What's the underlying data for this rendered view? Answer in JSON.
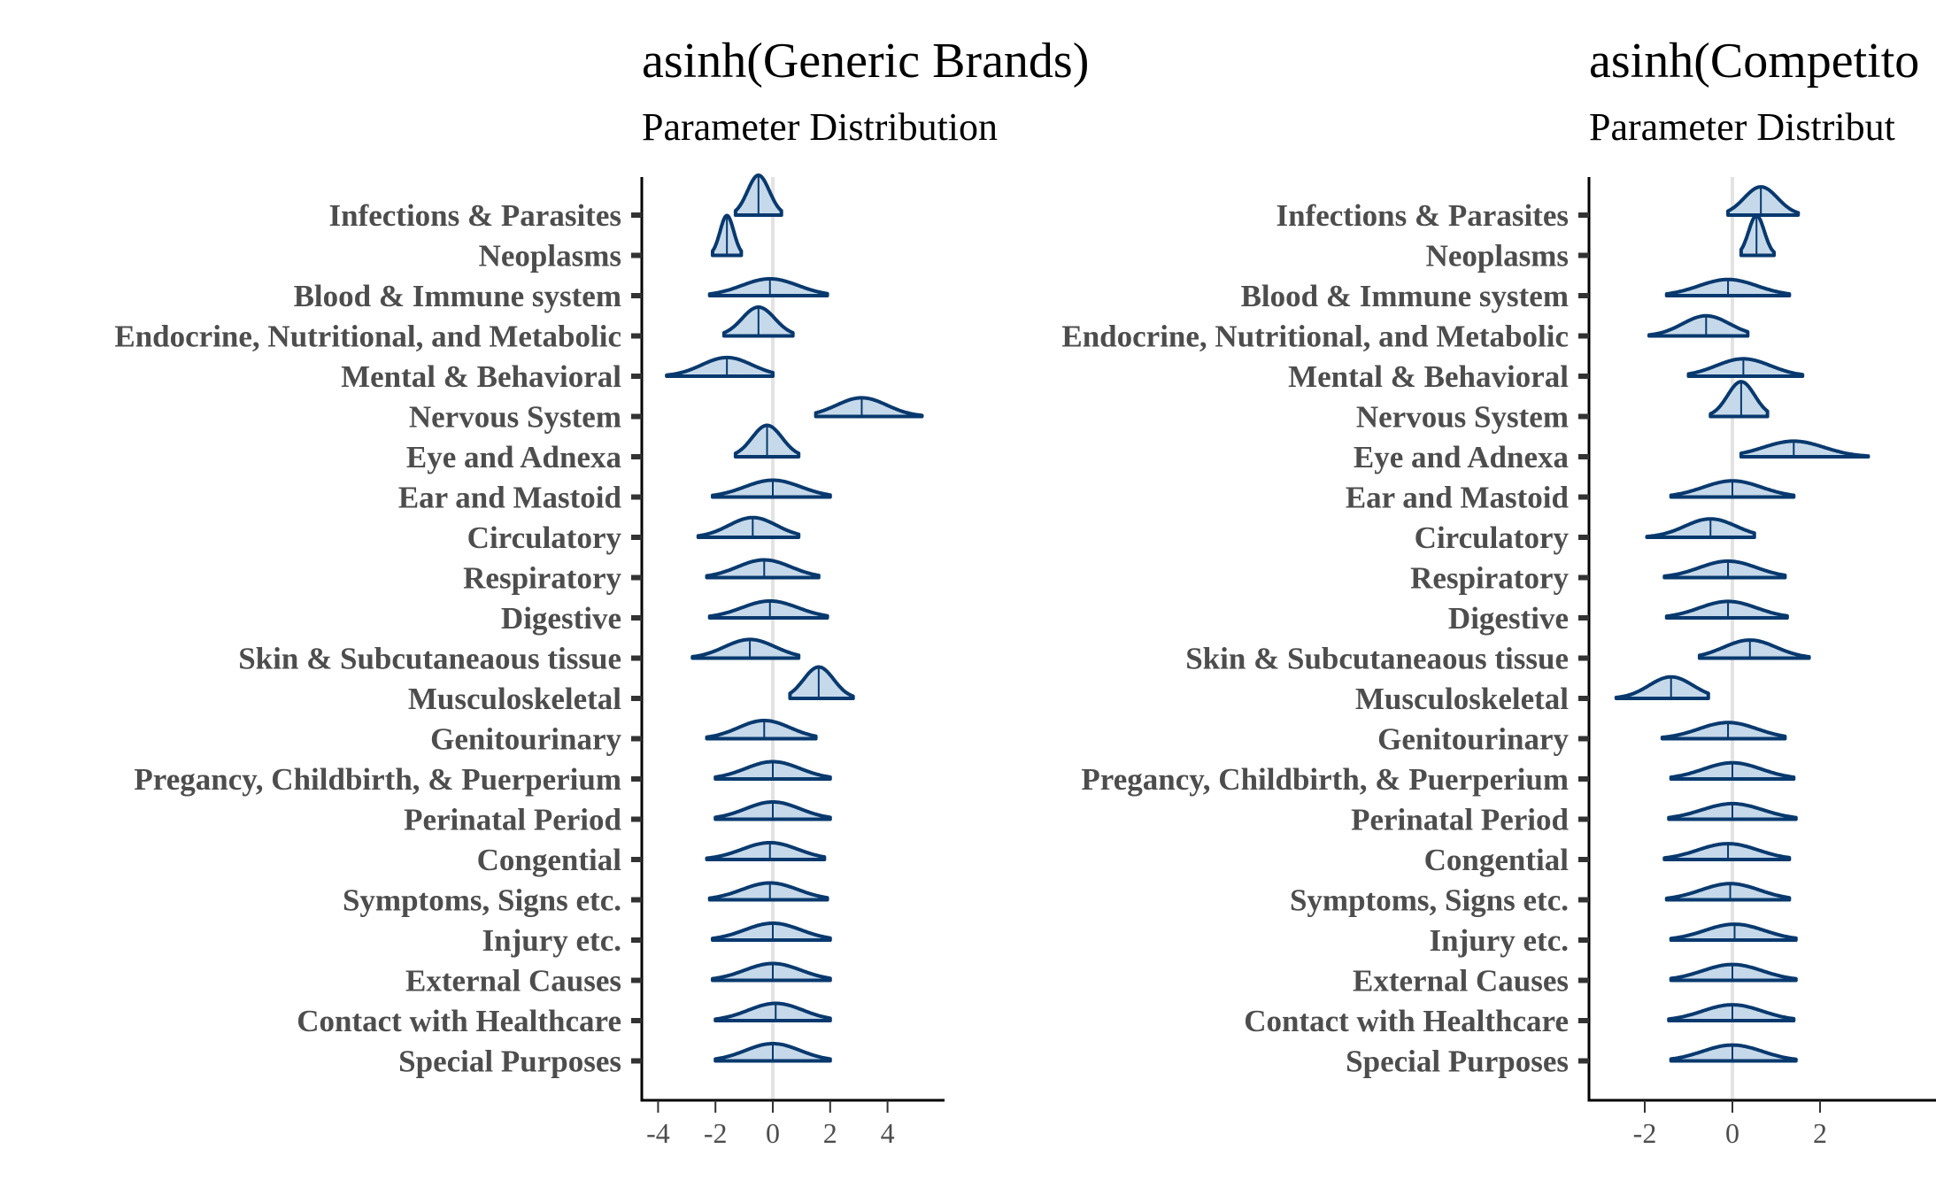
{
  "colors": {
    "fill": "#c6d9ea",
    "stroke": "#08396e",
    "zero_line": "#e3e3e3",
    "axis": "#000000",
    "tick": "#333333",
    "label": "#4d4d4d"
  },
  "chart_data": [
    {
      "type": "density",
      "title": "asinh(Generic Brands)",
      "subtitle": "Parameter Distribution",
      "xlim": [
        -4.6,
        6.0
      ],
      "xticks": [
        -4,
        -2,
        0,
        2,
        4
      ],
      "xtick_labels": [
        "-4",
        "-2",
        "0",
        "2",
        "4"
      ],
      "categories": [
        "Infections & Parasites",
        "Neoplasms",
        "Blood & Immune system",
        "Endocrine, Nutritional, and Metabolic",
        "Mental & Behavioral",
        "Nervous System",
        "Eye and Adnexa",
        "Ear and Mastoid",
        "Circulatory",
        "Respiratory",
        "Digestive",
        "Skin & Subcutaneaous tissue",
        "Musculoskeletal",
        "Genitourinary",
        "Pregancy, Childbirth, & Puerperium",
        "Perinatal Period",
        "Congential",
        "Symptoms, Signs etc.",
        "Injury etc.",
        "External Causes",
        "Contact with Healthcare",
        "Special Purposes"
      ],
      "distributions": [
        {
          "lo": -1.3,
          "center": -0.5,
          "hi": 0.3
        },
        {
          "lo": -2.1,
          "center": -1.6,
          "hi": -1.1
        },
        {
          "lo": -2.2,
          "center": -0.1,
          "hi": 1.9
        },
        {
          "lo": -1.7,
          "center": -0.5,
          "hi": 0.7
        },
        {
          "lo": -3.7,
          "center": -1.6,
          "hi": 0.0
        },
        {
          "lo": 1.5,
          "center": 3.1,
          "hi": 5.2
        },
        {
          "lo": -1.3,
          "center": -0.2,
          "hi": 0.9
        },
        {
          "lo": -2.1,
          "center": 0.0,
          "hi": 2.0
        },
        {
          "lo": -2.6,
          "center": -0.7,
          "hi": 0.9
        },
        {
          "lo": -2.3,
          "center": -0.3,
          "hi": 1.6
        },
        {
          "lo": -2.2,
          "center": -0.1,
          "hi": 1.9
        },
        {
          "lo": -2.8,
          "center": -0.8,
          "hi": 0.9
        },
        {
          "lo": 0.6,
          "center": 1.6,
          "hi": 2.8
        },
        {
          "lo": -2.3,
          "center": -0.3,
          "hi": 1.5
        },
        {
          "lo": -2.0,
          "center": 0.0,
          "hi": 2.0
        },
        {
          "lo": -2.0,
          "center": 0.0,
          "hi": 2.0
        },
        {
          "lo": -2.3,
          "center": -0.1,
          "hi": 1.8
        },
        {
          "lo": -2.2,
          "center": -0.1,
          "hi": 1.9
        },
        {
          "lo": -2.1,
          "center": 0.0,
          "hi": 2.0
        },
        {
          "lo": -2.1,
          "center": 0.0,
          "hi": 2.0
        },
        {
          "lo": -2.0,
          "center": 0.1,
          "hi": 2.0
        },
        {
          "lo": -2.0,
          "center": 0.0,
          "hi": 2.0
        }
      ]
    },
    {
      "type": "density",
      "title": "asinh(Competito",
      "subtitle": "Parameter Distribut",
      "xlim": [
        -3.3,
        3.7
      ],
      "xticks": [
        -2,
        0,
        2
      ],
      "xtick_labels": [
        "-2",
        "0",
        "2"
      ],
      "categories": [
        "Infections & Parasites",
        "Neoplasms",
        "Blood & Immune system",
        "Endocrine, Nutritional, and Metabolic",
        "Mental & Behavioral",
        "Nervous System",
        "Eye and Adnexa",
        "Ear and Mastoid",
        "Circulatory",
        "Respiratory",
        "Digestive",
        "Skin & Subcutaneaous tissue",
        "Musculoskeletal",
        "Genitourinary",
        "Pregancy, Childbirth, & Puerperium",
        "Perinatal Period",
        "Congential",
        "Symptoms, Signs etc.",
        "Injury etc.",
        "External Causes",
        "Contact with Healthcare",
        "Special Purposes"
      ],
      "distributions": [
        {
          "lo": -0.1,
          "center": 0.65,
          "hi": 1.5
        },
        {
          "lo": 0.2,
          "center": 0.55,
          "hi": 0.95
        },
        {
          "lo": -1.5,
          "center": -0.1,
          "hi": 1.3
        },
        {
          "lo": -1.9,
          "center": -0.6,
          "hi": 0.35
        },
        {
          "lo": -1.0,
          "center": 0.25,
          "hi": 1.6
        },
        {
          "lo": -0.5,
          "center": 0.2,
          "hi": 0.8
        },
        {
          "lo": 0.2,
          "center": 1.4,
          "hi": 3.1
        },
        {
          "lo": -1.4,
          "center": 0.0,
          "hi": 1.4
        },
        {
          "lo": -1.95,
          "center": -0.5,
          "hi": 0.5
        },
        {
          "lo": -1.55,
          "center": -0.1,
          "hi": 1.2
        },
        {
          "lo": -1.5,
          "center": -0.1,
          "hi": 1.25
        },
        {
          "lo": -0.75,
          "center": 0.4,
          "hi": 1.75
        },
        {
          "lo": -2.65,
          "center": -1.4,
          "hi": -0.55
        },
        {
          "lo": -1.6,
          "center": -0.1,
          "hi": 1.2
        },
        {
          "lo": -1.4,
          "center": 0.0,
          "hi": 1.4
        },
        {
          "lo": -1.45,
          "center": 0.0,
          "hi": 1.45
        },
        {
          "lo": -1.55,
          "center": -0.1,
          "hi": 1.3
        },
        {
          "lo": -1.5,
          "center": -0.05,
          "hi": 1.3
        },
        {
          "lo": -1.4,
          "center": 0.05,
          "hi": 1.45
        },
        {
          "lo": -1.4,
          "center": 0.0,
          "hi": 1.45
        },
        {
          "lo": -1.45,
          "center": 0.0,
          "hi": 1.4
        },
        {
          "lo": -1.4,
          "center": 0.0,
          "hi": 1.45
        }
      ]
    }
  ]
}
